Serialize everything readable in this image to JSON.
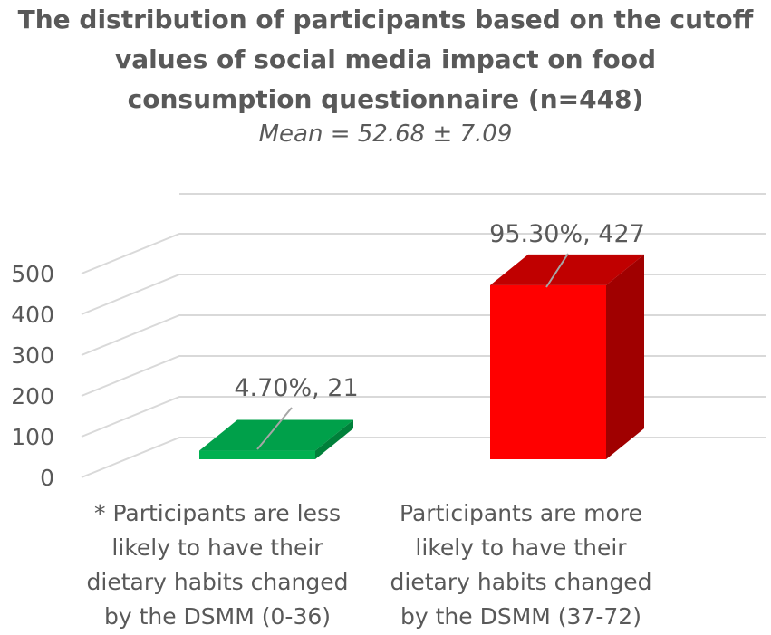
{
  "chart_data": {
    "type": "bar",
    "title": "The distribution of participants based on the cutoff values of social media impact on food consumption questionnaire (n=448)",
    "title_lines": [
      "The distribution of participants based on the cutoff",
      "values of social media impact on food",
      "consumption questionnaire (n=448)"
    ],
    "subtitle": "Mean = 52.68 ± 7.09",
    "categories": [
      "* Participants are less likely to have their dietary habits changed by the DSMM (0-36)",
      "Participants are more likely to have their dietary habits changed by the DSMM (37-72)"
    ],
    "category_lines": [
      [
        "* Participants are less",
        "likely to have their",
        "dietary habits changed",
        "by the DSMM (0-36)"
      ],
      [
        "Participants are more",
        "likely to have their",
        "dietary habits changed",
        "by the DSMM (37-72)"
      ]
    ],
    "values": [
      21,
      427
    ],
    "data_labels": [
      "4.70%, 21",
      "95.30%, 427"
    ],
    "ylim": [
      0,
      500
    ],
    "yticks": [
      0,
      100,
      200,
      300,
      400,
      500
    ],
    "colors": [
      "#00b050",
      "#ff0000"
    ],
    "grid": true,
    "legend": "none"
  }
}
